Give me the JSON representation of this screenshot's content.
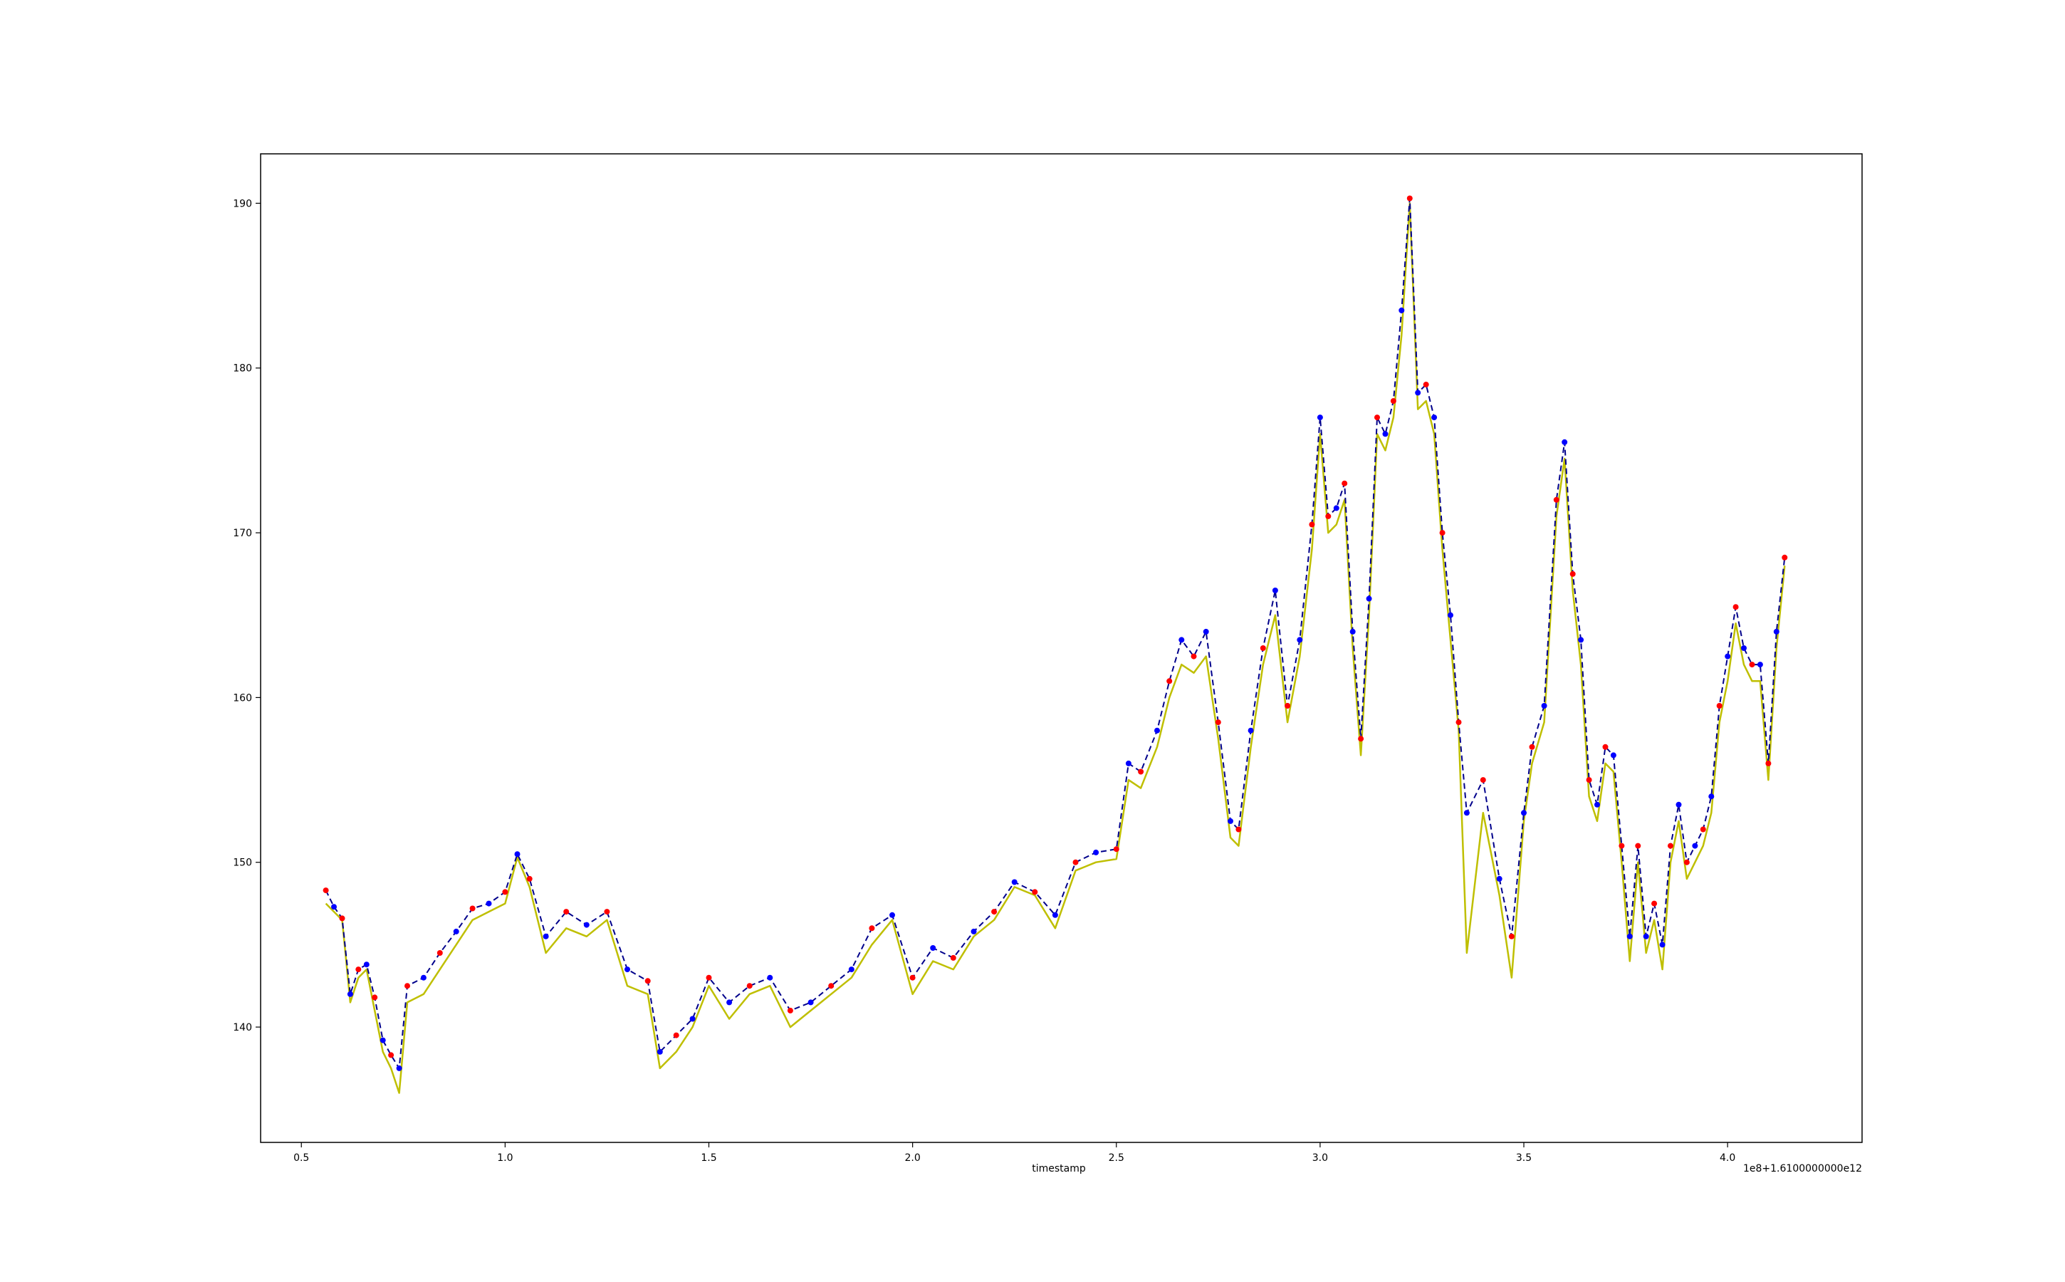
{
  "chart_data": {
    "type": "line",
    "xlabel": "timestamp",
    "ylabel": "",
    "x_offset_label": "1e8+1.6100000000e12",
    "xlim": [
      0.4,
      4.33
    ],
    "ylim": [
      133.0,
      193.0
    ],
    "grid": false,
    "x_ticks": [
      {
        "value": 0.5,
        "label": "0.5"
      },
      {
        "value": 1.0,
        "label": "1.0"
      },
      {
        "value": 1.5,
        "label": "1.5"
      },
      {
        "value": 2.0,
        "label": "2.0"
      },
      {
        "value": 2.5,
        "label": "2.5"
      },
      {
        "value": 3.0,
        "label": "3.0"
      },
      {
        "value": 3.5,
        "label": "3.5"
      },
      {
        "value": 4.0,
        "label": "4.0"
      }
    ],
    "y_ticks": [
      {
        "value": 140,
        "label": "140"
      },
      {
        "value": 150,
        "label": "150"
      },
      {
        "value": 160,
        "label": "160"
      },
      {
        "value": 170,
        "label": "170"
      },
      {
        "value": 180,
        "label": "180"
      },
      {
        "value": 190,
        "label": "190"
      }
    ],
    "x": [
      0.56,
      0.58,
      0.6,
      0.62,
      0.64,
      0.66,
      0.68,
      0.7,
      0.72,
      0.74,
      0.76,
      0.8,
      0.84,
      0.88,
      0.92,
      0.96,
      1.0,
      1.03,
      1.06,
      1.1,
      1.15,
      1.2,
      1.25,
      1.3,
      1.35,
      1.38,
      1.42,
      1.46,
      1.5,
      1.55,
      1.6,
      1.65,
      1.7,
      1.75,
      1.8,
      1.85,
      1.9,
      1.95,
      2.0,
      2.05,
      2.1,
      2.15,
      2.2,
      2.25,
      2.3,
      2.35,
      2.4,
      2.45,
      2.5,
      2.53,
      2.56,
      2.6,
      2.63,
      2.66,
      2.69,
      2.72,
      2.75,
      2.78,
      2.8,
      2.83,
      2.86,
      2.89,
      2.92,
      2.95,
      2.98,
      3.0,
      3.02,
      3.04,
      3.06,
      3.08,
      3.1,
      3.12,
      3.14,
      3.16,
      3.18,
      3.2,
      3.22,
      3.24,
      3.26,
      3.28,
      3.3,
      3.32,
      3.34,
      3.36,
      3.4,
      3.44,
      3.47,
      3.5,
      3.52,
      3.55,
      3.58,
      3.6,
      3.62,
      3.64,
      3.66,
      3.68,
      3.7,
      3.72,
      3.74,
      3.76,
      3.78,
      3.8,
      3.82,
      3.84,
      3.86,
      3.88,
      3.9,
      3.92,
      3.94,
      3.96,
      3.98,
      4.0,
      4.02,
      4.04,
      4.06,
      4.08,
      4.1,
      4.12,
      4.14
    ],
    "series": [
      {
        "color": "#bfbf00",
        "style": "solid",
        "values": [
          147.5,
          147.0,
          146.5,
          141.5,
          143.0,
          143.5,
          141.0,
          138.5,
          137.5,
          136.0,
          141.5,
          142.0,
          143.5,
          145.0,
          146.5,
          147.0,
          147.5,
          150.3,
          148.5,
          144.5,
          146.0,
          145.5,
          146.5,
          142.5,
          142.0,
          137.5,
          138.5,
          140.0,
          142.5,
          140.5,
          142.0,
          142.5,
          140.0,
          141.0,
          142.0,
          143.0,
          145.0,
          146.5,
          142.0,
          144.0,
          143.5,
          145.5,
          146.5,
          148.5,
          148.0,
          146.0,
          149.5,
          150.0,
          150.2,
          155.0,
          154.5,
          157.0,
          160.0,
          162.0,
          161.5,
          162.5,
          157.5,
          151.5,
          151.0,
          157.0,
          162.0,
          165.0,
          158.5,
          162.5,
          169.0,
          176.0,
          170.0,
          170.5,
          172.0,
          163.0,
          156.5,
          165.0,
          176.0,
          175.0,
          177.0,
          182.0,
          190.0,
          177.5,
          178.0,
          176.0,
          169.0,
          163.5,
          158.0,
          144.5,
          153.0,
          148.0,
          143.0,
          152.5,
          156.0,
          158.5,
          171.0,
          174.5,
          166.5,
          162.0,
          154.0,
          152.5,
          156.0,
          155.5,
          150.0,
          144.0,
          150.0,
          144.5,
          146.5,
          143.5,
          150.0,
          152.5,
          149.0,
          150.0,
          151.0,
          153.0,
          158.5,
          161.0,
          164.5,
          162.0,
          161.0,
          161.0,
          155.0,
          163.0,
          168.0
        ]
      },
      {
        "color": "#00008b",
        "style": "dashed",
        "values": [
          148.3,
          147.3,
          146.6,
          142.0,
          143.5,
          143.8,
          141.8,
          139.2,
          138.3,
          137.5,
          142.5,
          143.0,
          144.5,
          145.8,
          147.2,
          147.5,
          148.2,
          150.5,
          149.0,
          145.5,
          147.0,
          146.2,
          147.0,
          143.5,
          142.8,
          138.5,
          139.5,
          140.5,
          143.0,
          141.5,
          142.5,
          143.0,
          141.0,
          141.5,
          142.5,
          143.5,
          146.0,
          146.8,
          143.0,
          144.8,
          144.2,
          145.8,
          147.0,
          148.8,
          148.2,
          146.8,
          150.0,
          150.6,
          150.8,
          156.0,
          155.5,
          158.0,
          161.0,
          163.5,
          162.5,
          164.0,
          158.5,
          152.5,
          152.0,
          158.0,
          163.0,
          166.5,
          159.5,
          163.5,
          170.5,
          177.0,
          171.0,
          171.5,
          173.0,
          164.0,
          157.5,
          166.0,
          177.0,
          176.0,
          178.0,
          183.5,
          190.3,
          178.5,
          179.0,
          177.0,
          170.0,
          165.0,
          158.5,
          153.0,
          155.0,
          149.0,
          145.5,
          153.0,
          157.0,
          159.5,
          172.0,
          175.5,
          167.5,
          163.5,
          155.0,
          153.5,
          157.0,
          156.5,
          151.0,
          145.5,
          151.0,
          145.5,
          147.5,
          145.0,
          151.0,
          153.5,
          150.0,
          151.0,
          152.0,
          154.0,
          159.5,
          162.5,
          165.5,
          163.0,
          162.0,
          162.0,
          156.0,
          164.0,
          168.5
        ]
      }
    ]
  }
}
